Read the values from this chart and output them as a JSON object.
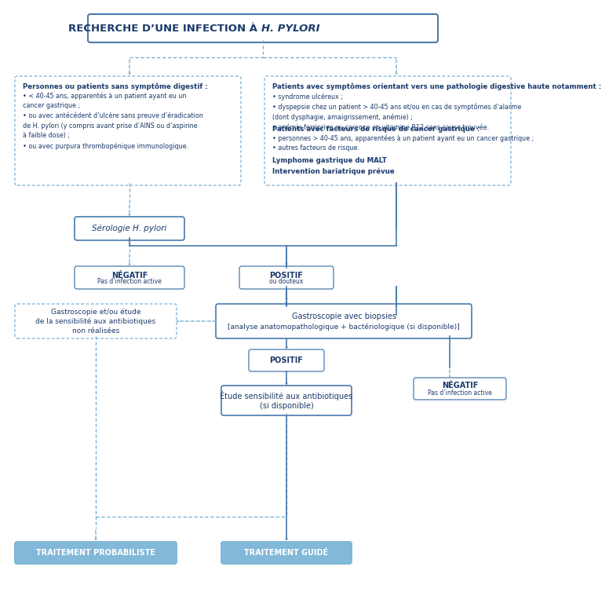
{
  "bg_color": "#ffffff",
  "dark_blue": "#1b3a6b",
  "mid_blue": "#4a7aad",
  "dashed_blue": "#7aafd4",
  "light_blue_fill": "#82b8d8",
  "title_text1": "RECHERCHE D’UNE INFECTION À ",
  "title_text2": "H. PYLORI",
  "box_left_title": "Personnes ou patients sans symptôme digestif :",
  "box_left_content": "• < 40-45 ans, apparentés à un patient ayant eu un\ncancer gastrique ;\n• ou avec antécédent d’ulcère sans preuve d’éradication\nde H. pylori (y compris avant prise d’AINS ou d’aspirine\nà faible dose) ;\n• ou avec purpura thrombopénique immunologique.",
  "box_right_title": "Patients avec symptômes orientant vers une pathologie digestive haute notamment :",
  "box_right_bullets": "• syndrome ulcéreux ;\n• dyspepsie chez un patient > 40-45 ans et/ou en cas de symptômes d’alarme\n(dont dysphagie, amaigrissement, anémie) ;\n• anémie ferriprive ou carence en vitamine B12 sans cause trouvée.",
  "box_right_sub_title": "Patients avec facteurs de risque de cancer gastrique :",
  "box_right_sub_bullets": "• personnes > 40-45 ans, apparentées à un patient ayant eu un cancer gastrique ;\n• autres facteurs de risque.",
  "box_right_bold1": "Lymphome gastrique du MALT",
  "box_right_bold2": "Intervention bariatrique prévue",
  "serologie": "Sérologie H. pylori",
  "negatif1_line1": "NÉGATIF",
  "negatif1_line2": "Pas d’infection active",
  "positif1_line1": "POSITIF",
  "positif1_line2": "ou douteux",
  "gastro_left": "Gastroscopie et/ou étude\nde la sensibilité aux antibiotiques\nnon réalisées",
  "gastro_right_line1": "Gastroscopie avec biopsies",
  "gastro_right_line2": "[analyse anatomopathologique + bactériologique (si disponible)]",
  "positif2": "POSITIF",
  "negatif2_line1": "NÉGATIF",
  "negatif2_line2": "Pas d’infection active",
  "etude_line1": "Étude sensibilité aux antibiotiques",
  "etude_line2": "(si disponible)",
  "traitement_proba": "TRAITEMENT PROBABILISTE",
  "traitement_guide": "TRAITEMENT GUIDÉ"
}
